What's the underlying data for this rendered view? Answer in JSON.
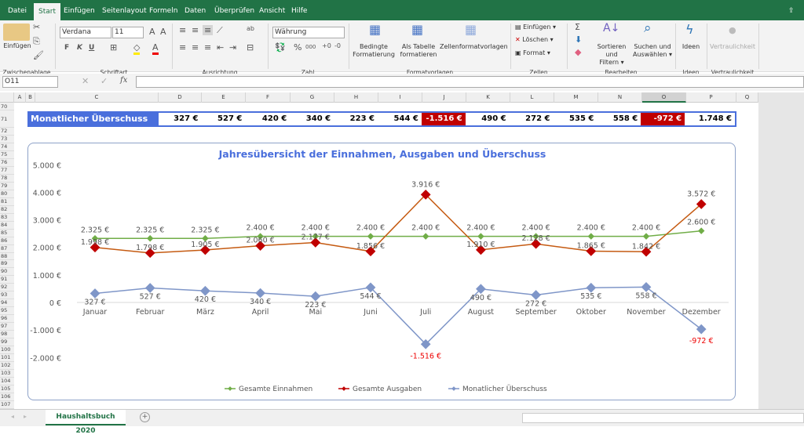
{
  "menu": {
    "tabs": [
      "Datei",
      "Start",
      "Einfügen",
      "Seitenlayout",
      "Formeln",
      "Daten",
      "Überprüfen",
      "Ansicht",
      "Hilfe"
    ],
    "active": "Start",
    "share": "Te"
  },
  "ribbon": {
    "clipboard": {
      "paste": "Einfügen",
      "group": "Zwischenablage"
    },
    "font": {
      "name": "Verdana",
      "size": "11",
      "bold": "F",
      "italic": "K",
      "underline": "U",
      "group": "Schriftart"
    },
    "alignment": {
      "group": "Ausrichtung"
    },
    "number": {
      "format": "Währung",
      "percent": "%",
      "thousands": "000",
      "group": "Zahl"
    },
    "styles": {
      "conditional": "Bedingte",
      "conditional2": "Formatierung",
      "table": "Als Tabelle",
      "table2": "formatieren",
      "cellstyles": "Zellenformatvorlagen",
      "group": "Formatvorlagen"
    },
    "cells": {
      "insert": "Einfügen",
      "delete": "Löschen",
      "format": "Format",
      "group": "Zellen"
    },
    "editing": {
      "sort": "Sortieren und",
      "sort2": "Filtern",
      "find": "Suchen und",
      "find2": "Auswählen",
      "group": "Bearbeiten"
    },
    "ideas": {
      "label": "Ideen",
      "group": "Ideen"
    },
    "sensitivity": {
      "label": "Vertraulichkeit",
      "group": "Vertraulichkeit"
    }
  },
  "formula_bar": {
    "name_box": "O11",
    "fx": "fx",
    "value": ""
  },
  "columns": [
    "A",
    "B",
    "C",
    "D",
    "E",
    "F",
    "G",
    "H",
    "I",
    "J",
    "K",
    "L",
    "M",
    "N",
    "O",
    "P",
    "Q"
  ],
  "rows_start": 70,
  "rows_end": 107,
  "banner": {
    "label": "Monatlicher Überschuss",
    "values": [
      "327 €",
      "527 €",
      "420 €",
      "340 €",
      "223 €",
      "544 €",
      "-1.516 €",
      "490 €",
      "272 €",
      "535 €",
      "558 €",
      "-972 €",
      "1.748 €"
    ],
    "label_bg": "#4a6fdc",
    "negative_bg": "#c00000"
  },
  "chart_data": {
    "type": "line",
    "title": "Jahresübersicht der Einnahmen, Ausgaben und Überschuss",
    "categories": [
      "Januar",
      "Februar",
      "März",
      "April",
      "Mai",
      "Juni",
      "Juli",
      "August",
      "September",
      "Oktober",
      "November",
      "Dezember"
    ],
    "ylim": [
      -2000,
      5000
    ],
    "yticks": [
      "5.000 €",
      "4.000 €",
      "3.000 €",
      "2.000 €",
      "1.000 €",
      "0 €",
      "-1.000 €",
      "-2.000 €"
    ],
    "ytick_values": [
      5000,
      4000,
      3000,
      2000,
      1000,
      0,
      -1000,
      -2000
    ],
    "legend": "bottom",
    "series": [
      {
        "name": "Gesamte Einnahmen",
        "color": "#70ad47",
        "values": [
          2325,
          2325,
          2325,
          2400,
          2400,
          2400,
          2400,
          2400,
          2400,
          2400,
          2400,
          2600
        ],
        "labels": [
          "2.325 €",
          "2.325 €",
          "2.325 €",
          "2.400 €",
          "2.400 €",
          "2.400 €",
          "2.400 €",
          "2.400 €",
          "2.400 €",
          "2.400 €",
          "2.400 €",
          "2.600 €"
        ]
      },
      {
        "name": "Gesamte Ausgaben",
        "color": "#c00000",
        "values": [
          1998,
          1798,
          1905,
          2060,
          2177,
          1856,
          3916,
          1910,
          2128,
          1865,
          1842,
          3572
        ],
        "labels": [
          "1.998 €",
          "1.798 €",
          "1.905 €",
          "2.060 €",
          "2.177 €",
          "1.856 €",
          "3.916 €",
          "1.910 €",
          "2.128 €",
          "1.865 €",
          "1.842 €",
          "3.572 €"
        ]
      },
      {
        "name": "Monatlicher Überschuss",
        "color": "#7f96c8",
        "values": [
          327,
          527,
          420,
          340,
          223,
          544,
          -1516,
          490,
          272,
          535,
          558,
          -972
        ],
        "labels": [
          "327 €",
          "527 €",
          "420 €",
          "340 €",
          "223 €",
          "544 €",
          "-1.516 €",
          "490 €",
          "272 €",
          "535 €",
          "558 €",
          "-972 €"
        ]
      }
    ]
  },
  "sheet_tabs": {
    "active": "Haushaltsbuch 2020",
    "add": "+"
  }
}
